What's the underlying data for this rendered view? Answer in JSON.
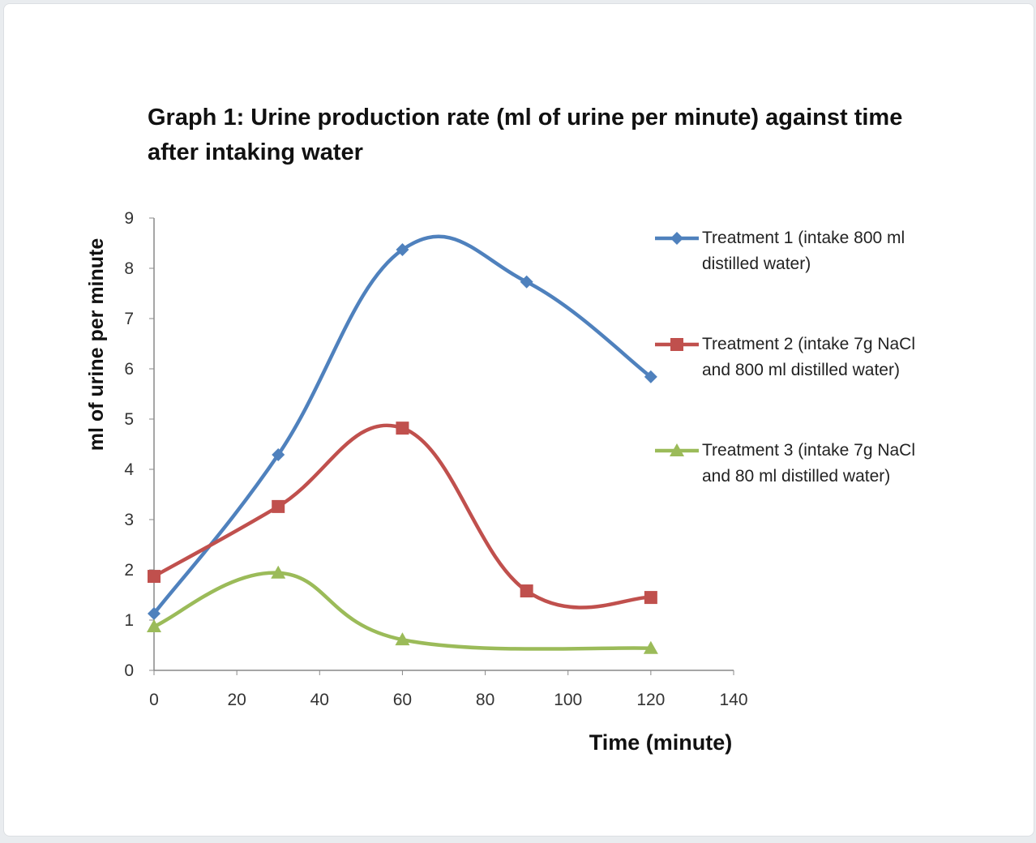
{
  "chart_data": {
    "type": "line",
    "title": "Graph 1: Urine production rate (ml of urine per minute) against time after intaking water",
    "xlabel": "Time (minute)",
    "ylabel": "ml of urine per minute",
    "xlim": [
      0,
      140
    ],
    "ylim": [
      0,
      9
    ],
    "xticks": [
      0,
      20,
      40,
      60,
      80,
      100,
      120,
      140
    ],
    "yticks": [
      0,
      1,
      2,
      3,
      4,
      5,
      6,
      7,
      8,
      9
    ],
    "grid": false,
    "legend": "right",
    "smooth": true,
    "series": [
      {
        "name": "Treatment 1 (intake 800 ml distilled water)",
        "color": "#4f81bd",
        "marker": "diamond",
        "x": [
          0,
          30,
          60,
          90,
          120
        ],
        "y": [
          1.13,
          4.29,
          8.37,
          7.73,
          5.84
        ]
      },
      {
        "name": "Treatment 2 (intake 7g NaCl and 800 ml distilled water)",
        "color": "#c0504d",
        "marker": "square",
        "x": [
          0,
          30,
          60,
          90,
          120
        ],
        "y": [
          1.87,
          3.26,
          4.82,
          1.58,
          1.45
        ]
      },
      {
        "name": "Treatment 3 (intake 7g NaCl and 80 ml distilled water)",
        "color": "#9bbb59",
        "marker": "triangle",
        "x": [
          0,
          30,
          60,
          120
        ],
        "y": [
          0.87,
          1.94,
          0.61,
          0.44
        ]
      }
    ]
  }
}
